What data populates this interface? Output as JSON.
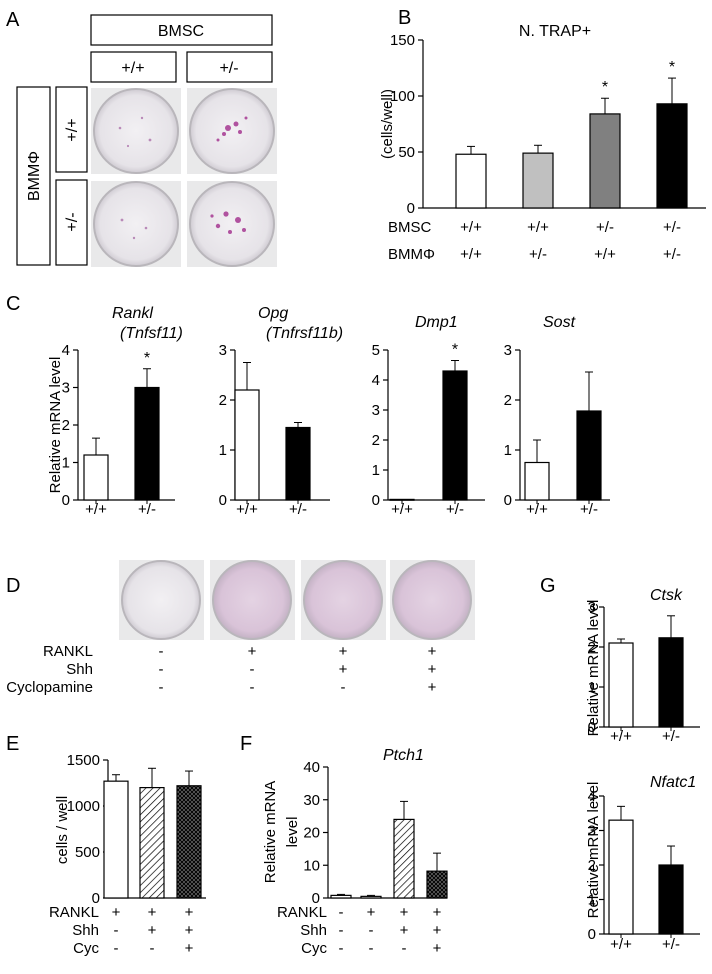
{
  "panels": {
    "A": {
      "letter": "A",
      "bmsc_label": "BMSC",
      "bmsc_cols": [
        "+/+",
        "+/-"
      ],
      "bmm_label": "BMMΦ",
      "bmm_rows": [
        "+/+",
        "+/-"
      ]
    },
    "D": {
      "letter": "D",
      "rows": [
        {
          "label": "RANKL",
          "values": [
            "-",
            "+",
            "+",
            "+"
          ]
        },
        {
          "label": "Shh",
          "values": [
            "-",
            "-",
            "+",
            "+"
          ]
        },
        {
          "label": "Cyclopamine",
          "values": [
            "-",
            "-",
            "-",
            "+"
          ]
        }
      ]
    },
    "C": {
      "letter": "C",
      "ylabel": "Relative mRNA level"
    },
    "E": {
      "letter": "E"
    },
    "F": {
      "letter": "F"
    },
    "G": {
      "letter": "G",
      "ylabel": "Relative mRNA level"
    }
  },
  "chart_data": [
    {
      "id": "B",
      "letter": "B",
      "type": "bar",
      "title": "N. TRAP+",
      "title_italic": false,
      "ylabel": "(cells/well)",
      "ylim": [
        0,
        150
      ],
      "yticks": [
        0,
        50,
        100,
        150
      ],
      "categories": [
        "1",
        "2",
        "3",
        "4"
      ],
      "values": [
        48,
        49,
        84,
        93
      ],
      "errors": [
        7,
        7,
        14,
        23
      ],
      "fills": [
        "#ffffff",
        "#c0c0c0",
        "#808080",
        "#000000"
      ],
      "significance": [
        "",
        "",
        "*",
        "*"
      ],
      "x_rows": [
        {
          "label": "BMSC",
          "values": [
            "+/+",
            "+/+",
            "+/-",
            "+/-"
          ]
        },
        {
          "label": "BMMΦ",
          "values": [
            "+/+",
            "+/-",
            "+/+",
            "+/-"
          ]
        }
      ]
    },
    {
      "id": "C1",
      "type": "bar",
      "title": "Rankl",
      "subtitle": "(Tnfsf11)",
      "title_italic": true,
      "ylim": [
        0,
        4
      ],
      "yticks": [
        0,
        1,
        2,
        3,
        4
      ],
      "categories": [
        "+/+",
        "+/-"
      ],
      "values": [
        1.2,
        3.0
      ],
      "errors": [
        0.45,
        0.5
      ],
      "fills": [
        "#ffffff",
        "#000000"
      ],
      "significance": [
        "",
        "*"
      ]
    },
    {
      "id": "C2",
      "type": "bar",
      "title": "Opg",
      "subtitle": "(Tnfrsf11b)",
      "title_italic": true,
      "ylim": [
        0,
        3
      ],
      "yticks": [
        0,
        1,
        2,
        3
      ],
      "categories": [
        "+/+",
        "+/-"
      ],
      "values": [
        2.2,
        1.45
      ],
      "errors": [
        0.55,
        0.1
      ],
      "fills": [
        "#ffffff",
        "#000000"
      ],
      "significance": [
        "",
        ""
      ]
    },
    {
      "id": "C3",
      "type": "bar",
      "title": "Dmp1",
      "title_italic": true,
      "ylim": [
        0,
        5
      ],
      "yticks": [
        0,
        1,
        2,
        3,
        4,
        5
      ],
      "categories": [
        "+/+",
        "+/-"
      ],
      "values": [
        0.02,
        4.3
      ],
      "errors": [
        0,
        0.35
      ],
      "fills": [
        "#ffffff",
        "#000000"
      ],
      "significance": [
        "",
        "*"
      ]
    },
    {
      "id": "C4",
      "type": "bar",
      "title": "Sost",
      "title_italic": true,
      "ylim": [
        0,
        3
      ],
      "yticks": [
        0,
        1,
        2,
        3
      ],
      "categories": [
        "+/+",
        "+/-"
      ],
      "values": [
        0.75,
        1.78
      ],
      "errors": [
        0.45,
        0.78
      ],
      "fills": [
        "#ffffff",
        "#000000"
      ],
      "significance": [
        "",
        ""
      ]
    },
    {
      "id": "E",
      "type": "bar",
      "ylabel": "cells / well",
      "ylim": [
        0,
        1500
      ],
      "yticks": [
        0,
        500,
        1000,
        1500
      ],
      "categories": [
        "1",
        "2",
        "3"
      ],
      "values": [
        1270,
        1200,
        1220
      ],
      "errors": [
        70,
        210,
        160
      ],
      "fills": [
        "#ffffff",
        "hatch",
        "cross"
      ],
      "significance": [
        "",
        "",
        ""
      ],
      "x_rows": [
        {
          "label": "RANKL",
          "values": [
            "+",
            "+",
            "+"
          ]
        },
        {
          "label": "Shh",
          "values": [
            "-",
            "+",
            "+"
          ]
        },
        {
          "label": "Cyc",
          "values": [
            "-",
            "-",
            "+"
          ]
        }
      ]
    },
    {
      "id": "F",
      "type": "bar",
      "title": "Ptch1",
      "title_italic": true,
      "ylabel": "Relative mRNA",
      "ylabel2": "level",
      "ylim": [
        0,
        40
      ],
      "yticks": [
        0,
        10,
        20,
        30,
        40
      ],
      "categories": [
        "1",
        "2",
        "3",
        "4"
      ],
      "values": [
        0.8,
        0.5,
        24,
        8.2
      ],
      "errors": [
        0.3,
        0.3,
        5.5,
        5.5
      ],
      "fills": [
        "#ffffff",
        "#ffffff",
        "hatch",
        "cross"
      ],
      "significance": [
        "",
        "",
        "",
        ""
      ],
      "x_rows": [
        {
          "label": "RANKL",
          "values": [
            "-",
            "+",
            "+",
            "+"
          ]
        },
        {
          "label": "Shh",
          "values": [
            "-",
            "-",
            "+",
            "+"
          ]
        },
        {
          "label": "Cyc",
          "values": [
            "-",
            "-",
            "-",
            "+"
          ]
        }
      ]
    },
    {
      "id": "G1",
      "type": "bar",
      "title": "Ctsk",
      "title_italic": true,
      "ylim": [
        0,
        3
      ],
      "yticks": [
        0,
        1,
        2,
        3
      ],
      "categories": [
        "+/+",
        "+/-"
      ],
      "values": [
        2.1,
        2.23
      ],
      "errors": [
        0.1,
        0.55
      ],
      "fills": [
        "#ffffff",
        "#000000"
      ],
      "significance": [
        "",
        ""
      ]
    },
    {
      "id": "G2",
      "type": "bar",
      "title": "Nfatc1",
      "title_italic": true,
      "ylim": [
        0,
        4
      ],
      "yticks": [
        0,
        1,
        2,
        3,
        4
      ],
      "categories": [
        "+/+",
        "+/-"
      ],
      "values": [
        3.3,
        2.0
      ],
      "errors": [
        0.4,
        0.55
      ],
      "fills": [
        "#ffffff",
        "#000000"
      ],
      "significance": [
        "",
        ""
      ]
    }
  ]
}
